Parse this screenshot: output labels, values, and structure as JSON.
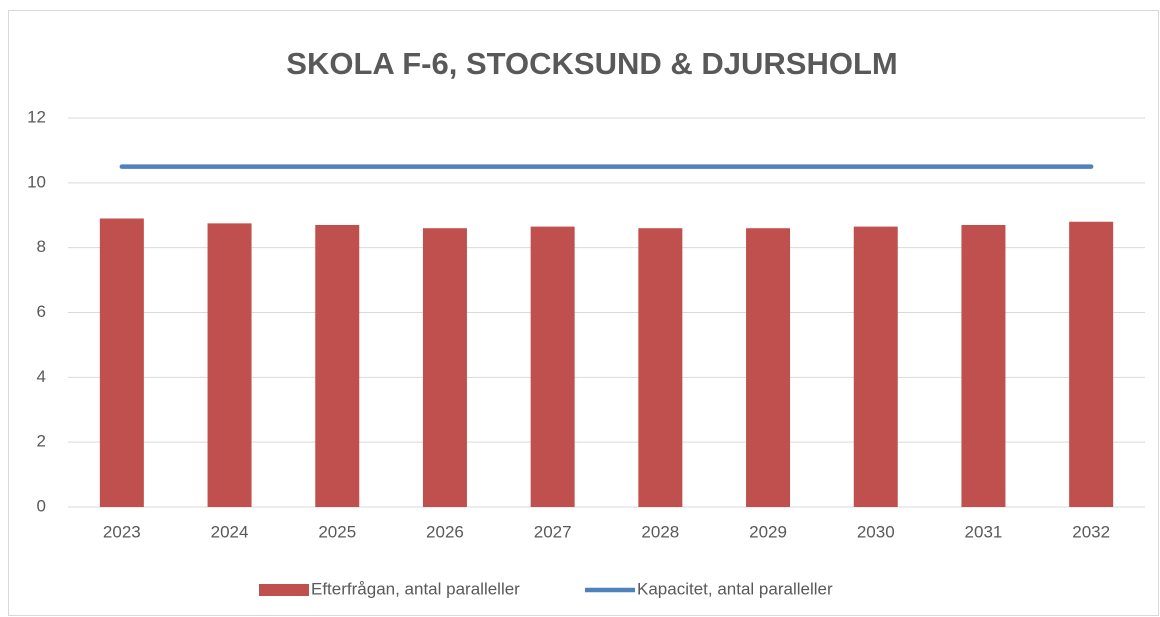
{
  "chart_data": {
    "type": "bar",
    "title": "SKOLA F-6, STOCKSUND & DJURSHOLM",
    "categories": [
      "2023",
      "2024",
      "2025",
      "2026",
      "2027",
      "2028",
      "2029",
      "2030",
      "2031",
      "2032"
    ],
    "series": [
      {
        "name": "Efterfrågan, antal paralleller",
        "type": "bar",
        "color": "#c0504d",
        "values": [
          8.9,
          8.75,
          8.7,
          8.6,
          8.65,
          8.6,
          8.6,
          8.65,
          8.7,
          8.8
        ]
      },
      {
        "name": "Kapacitet, antal paralleller",
        "type": "line",
        "color": "#4f81bd",
        "values": [
          10.5,
          10.5,
          10.5,
          10.5,
          10.5,
          10.5,
          10.5,
          10.5,
          10.5,
          10.5
        ]
      }
    ],
    "ylim": [
      0,
      12
    ],
    "yticks": [
      0,
      2,
      4,
      6,
      8,
      10,
      12
    ],
    "grid": true,
    "legend": "bottom"
  }
}
